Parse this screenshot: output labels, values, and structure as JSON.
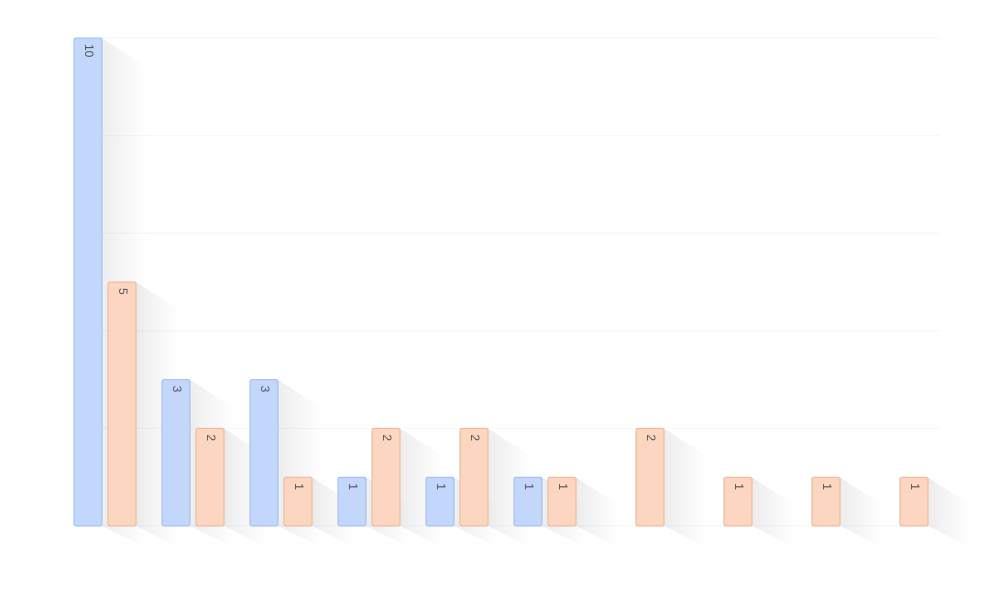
{
  "chart_data": {
    "type": "bar",
    "categories": [
      "",
      "",
      "",
      "",
      "",
      "",
      "",
      "",
      "",
      ""
    ],
    "series": [
      {
        "values": [
          10,
          3,
          3,
          1,
          1,
          1,
          null,
          null,
          null,
          null
        ]
      },
      {
        "values": [
          5,
          2,
          1,
          2,
          2,
          1,
          2,
          1,
          1,
          1
        ]
      }
    ],
    "ylim": [
      0,
      10
    ],
    "grid": true,
    "legend": "none",
    "colors": {
      "series_fill": [
        "#c2d7fb",
        "#fcd6c0"
      ],
      "series_stroke": [
        "#9fbcf0",
        "#eab596"
      ],
      "grid": "#f6f6f6",
      "shadow": "#000000"
    }
  }
}
